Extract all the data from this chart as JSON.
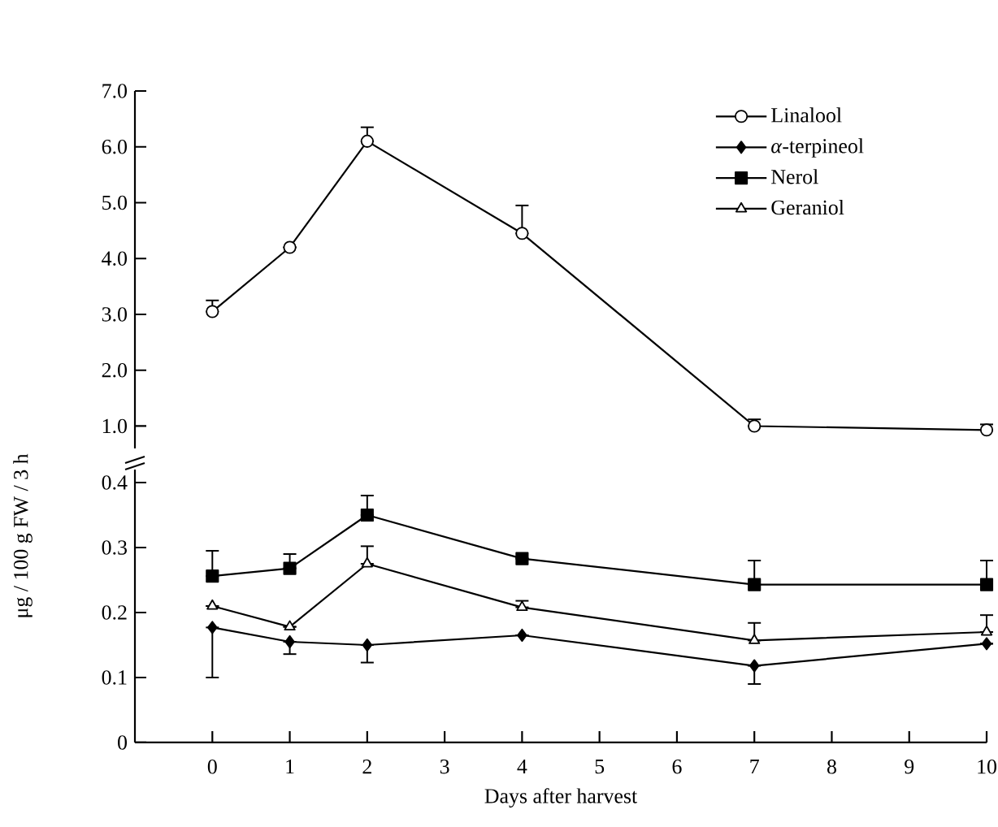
{
  "chart_data": [
    {
      "type": "line",
      "xlim": [
        -1,
        10
      ],
      "ylim": [
        0.6,
        7.0
      ],
      "yticks": [
        {
          "value": 1,
          "label": "1.0"
        },
        {
          "value": 2,
          "label": "2.0"
        },
        {
          "value": 3,
          "label": "3.0"
        },
        {
          "value": 4,
          "label": "4.0"
        },
        {
          "value": 5,
          "label": "5.0"
        },
        {
          "value": 6,
          "label": "6.0"
        },
        {
          "value": 7,
          "label": "7.0"
        }
      ],
      "tick_labels": "y",
      "legend": "top right",
      "series": [
        {
          "name": "Linalool",
          "color": "#000000",
          "marker": "circle",
          "x": [
            0,
            1,
            2,
            4,
            7,
            10
          ],
          "values": [
            3.05,
            4.2,
            6.1,
            4.45,
            1.0,
            0.93
          ],
          "errors": [
            [
              3.05,
              3.25
            ],
            null,
            [
              6.1,
              6.35
            ],
            [
              4.45,
              4.95
            ],
            [
              1.0,
              1.12
            ],
            [
              0.93,
              1.03
            ]
          ]
        }
      ]
    },
    {
      "type": "line",
      "xlim": [
        -1,
        10
      ],
      "ylim": [
        0,
        0.42
      ],
      "xlabel": "Days after harvest",
      "legend": "top right",
      "ylabel": "μg / 100 g FW / 3 h",
      "xticks": [
        0,
        1,
        2,
        3,
        4,
        5,
        6,
        7,
        8,
        9,
        10
      ],
      "yticks": [
        0,
        0.1,
        0.2,
        0.3,
        0.4
      ],
      "series": [
        {
          "name": "*α*-terpineol",
          "color": "#000000",
          "marker": "diamond",
          "x": [
            0,
            1,
            2,
            4,
            7,
            10
          ],
          "values": [
            0.177,
            0.155,
            0.15,
            0.165,
            0.118,
            0.152
          ],
          "errors": [
            [
              0.1,
              0.177
            ],
            [
              0.136,
              0.155
            ],
            [
              0.123,
              0.15
            ],
            null,
            [
              0.09,
              0.118
            ],
            null
          ]
        },
        {
          "name": "Nerol",
          "color": "#000000",
          "marker": "square",
          "x": [
            0,
            1,
            2,
            4,
            7,
            10
          ],
          "values": [
            0.256,
            0.268,
            0.35,
            0.283,
            0.243,
            0.243
          ],
          "errors": [
            [
              0.256,
              0.295
            ],
            [
              0.268,
              0.29
            ],
            [
              0.35,
              0.38
            ],
            null,
            [
              0.243,
              0.28
            ],
            [
              0.243,
              0.28
            ]
          ]
        },
        {
          "name": "Geraniol",
          "color": "#000000",
          "marker": "triangle",
          "x": [
            0,
            1,
            2,
            4,
            7,
            10
          ],
          "values": [
            0.21,
            0.178,
            0.275,
            0.208,
            0.157,
            0.17
          ],
          "errors": [
            null,
            null,
            [
              0.275,
              0.302
            ],
            [
              0.208,
              0.218
            ],
            [
              0.157,
              0.184
            ],
            [
              0.17,
              0.196
            ]
          ]
        }
      ]
    }
  ]
}
